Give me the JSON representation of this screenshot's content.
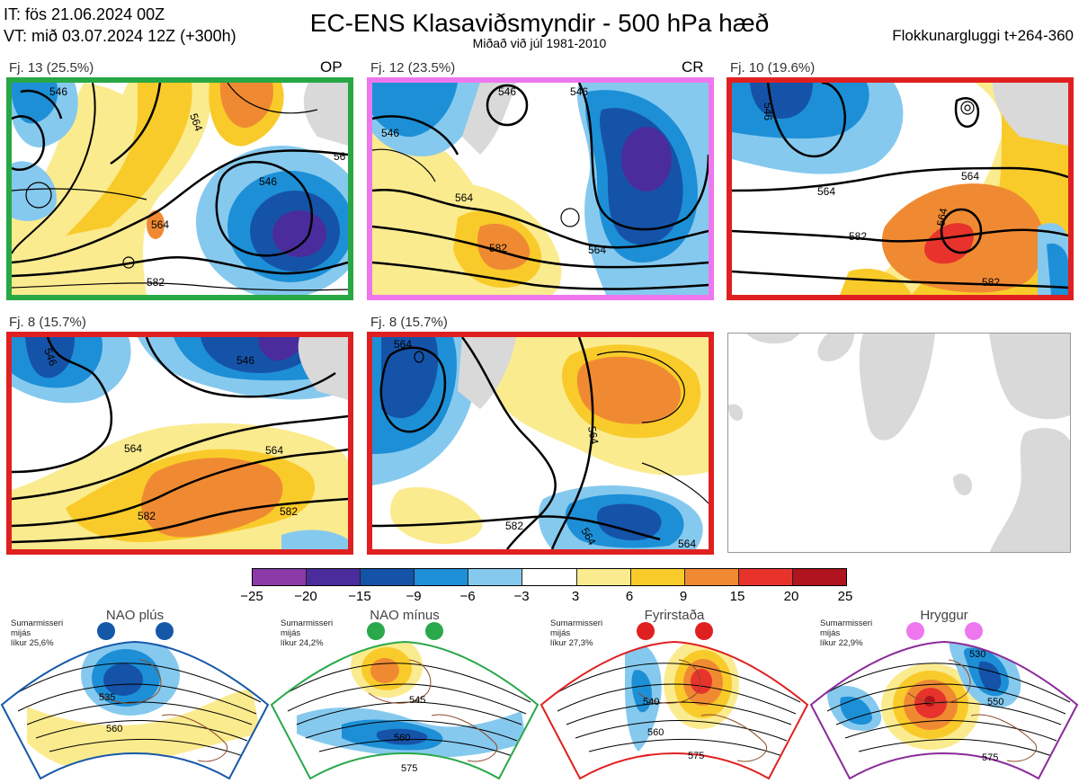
{
  "header": {
    "it": "IT: fös 21.06.2024 00Z",
    "vt": "VT: mið 03.07.2024 12Z  (+300h)",
    "title": "EC-ENS Klasaviðsmyndir - 500 hPa hæð",
    "subtitle": "Miðað við júl 1981-2010",
    "window": "Flokkunargluggi t+264-360"
  },
  "clusters": [
    {
      "label": "Fj. 13 (25.5%)",
      "tag": "OP",
      "border": "#28a745",
      "contours": [
        "546",
        "564",
        "582",
        "564",
        "546",
        "56"
      ]
    },
    {
      "label": "Fj. 12 (23.5%)",
      "tag": "CR",
      "border": "#ee77ee",
      "contours": [
        "546",
        "546",
        "564",
        "582",
        "564",
        "546"
      ]
    },
    {
      "label": "Fj. 10 (19.6%)",
      "tag": "",
      "border": "#e02020",
      "contours": [
        "546",
        "564",
        "564",
        "582",
        "564",
        "582"
      ]
    },
    {
      "label": "Fj. 8 (15.7%)",
      "tag": "",
      "border": "#e02020",
      "contours": [
        "546",
        "546",
        "564",
        "564",
        "582",
        "582"
      ]
    },
    {
      "label": "Fj. 8 (15.7%)",
      "tag": "",
      "border": "#e02020",
      "contours": [
        "564",
        "564",
        "582",
        "564",
        "564"
      ]
    }
  ],
  "colorbar": {
    "ticks": [
      "−25",
      "−20",
      "−15",
      "−9",
      "−6",
      "−3",
      "3",
      "6",
      "9",
      "15",
      "20",
      "25"
    ],
    "colors": [
      "#8b3aa8",
      "#4a2c9c",
      "#1553a8",
      "#1d8fd6",
      "#86c9ee",
      "#ffffff",
      "#fbeb8f",
      "#f9cb2a",
      "#f08a32",
      "#e8332d",
      "#b0141e"
    ]
  },
  "regimes": [
    {
      "name": "NAO plús",
      "season": "Sumarmisseri",
      "similarity": "mijás",
      "prob": "líkur 25,6%",
      "color": "#1558a8",
      "contours": [
        "535",
        "560"
      ]
    },
    {
      "name": "NAO mínus",
      "season": "Sumarmisseri",
      "similarity": "mijás",
      "prob": "líkur 24,2%",
      "color": "#2aa84a",
      "contours": [
        "545",
        "560",
        "575"
      ]
    },
    {
      "name": "Fyrirstaða",
      "season": "Sumarmisseri",
      "similarity": "mijás",
      "prob": "líkur 27,3%",
      "color": "#e02020",
      "contours": [
        "540",
        "560",
        "575"
      ]
    },
    {
      "name": "Hryggur",
      "season": "Sumarmisseri",
      "similarity": "mijás",
      "prob": "líkur 22,9%",
      "color": "#ee77ee",
      "contours": [
        "530",
        "550",
        "575"
      ]
    }
  ]
}
